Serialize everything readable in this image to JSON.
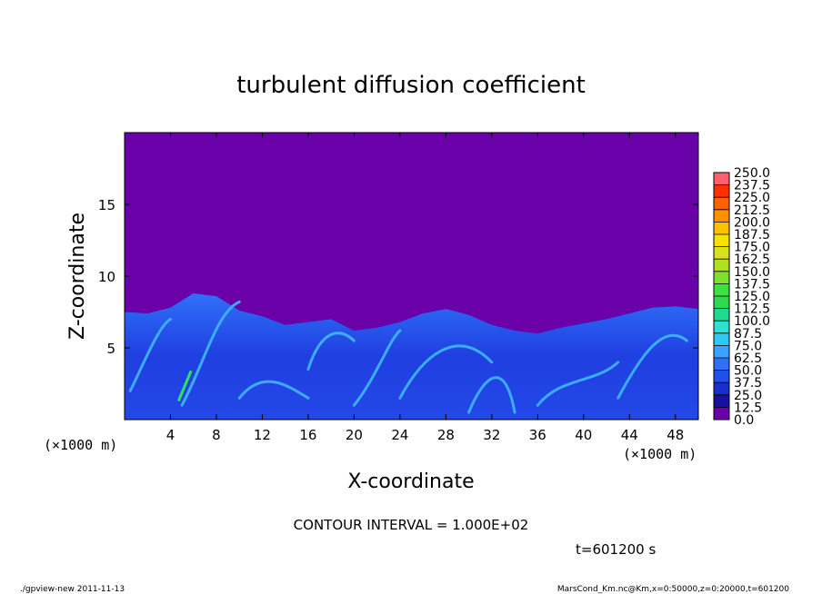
{
  "chart_data": {
    "type": "heatmap",
    "title": "turbulent diffusion coefficient",
    "xlabel": "X-coordinate",
    "ylabel": "Z-coordinate",
    "x_unit": "(×1000 m)",
    "y_unit": "(×1000 m)",
    "xlim": [
      0,
      50
    ],
    "ylim": [
      0,
      20
    ],
    "x_ticks": [
      4,
      8,
      12,
      16,
      20,
      24,
      28,
      32,
      36,
      40,
      44,
      48
    ],
    "y_ticks": [
      5,
      10,
      15
    ],
    "colorbar": {
      "levels": [
        "0.0",
        "12.5",
        "25.0",
        "37.5",
        "50.0",
        "62.5",
        "75.0",
        "87.5",
        "100.0",
        "112.5",
        "125.0",
        "137.5",
        "150.0",
        "162.5",
        "175.0",
        "187.5",
        "200.0",
        "212.5",
        "225.0",
        "237.5",
        "250.0"
      ],
      "colors": [
        "#6a00a8",
        "#1a10a0",
        "#1830c8",
        "#2050e8",
        "#3070f8",
        "#40a0ff",
        "#30c8f0",
        "#30e0d0",
        "#20d890",
        "#30d850",
        "#40e040",
        "#80e030",
        "#b0e020",
        "#d8e020",
        "#f8e000",
        "#ffc000",
        "#ff9000",
        "#ff6000",
        "#ff3000",
        "#ff6070"
      ]
    },
    "field_summary": {
      "background_value": 0.0,
      "active_layer_top_range_km": [
        6,
        9
      ],
      "typical_active_values": [
        37.5,
        87.5
      ],
      "local_maximum_near_x_km": 5,
      "local_maximum_value_approx": 137.5
    },
    "contour_interval_text": "CONTOUR INTERVAL = 1.000E+02",
    "time_text": "t=601200 s"
  },
  "footer": {
    "program": "./gpview-new   2011-11-13",
    "source": "MarsCond_Km.nc@Km,x=0:50000,z=0:20000,t=601200"
  },
  "colors": {
    "background": "#6a00a8",
    "turbulence_base": "#1f3fe0",
    "turbulence_bright": "#40b8ff"
  }
}
